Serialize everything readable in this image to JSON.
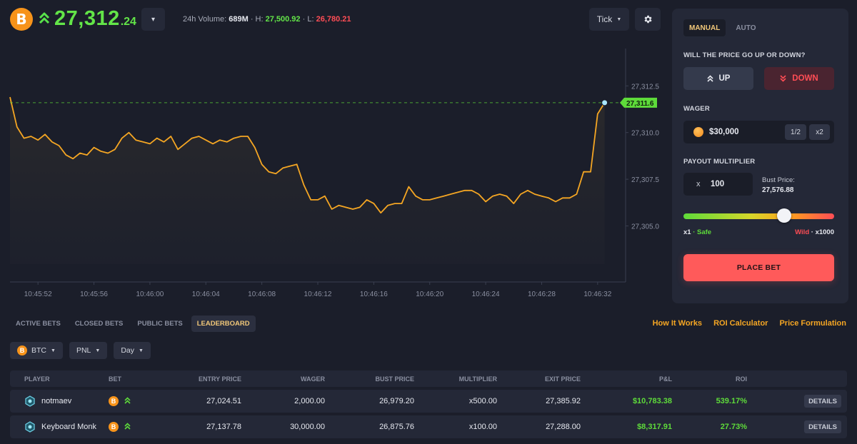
{
  "header": {
    "asset_logo": "B",
    "price_main": "27,312",
    "price_decimal": ".24",
    "direction_icon": "double-up-arrow",
    "asset_dropdown_icon": "▾",
    "stats": {
      "volume_label": "24h Volume:",
      "volume": "689M",
      "high_label": "· H:",
      "high": "27,500.92",
      "low_label": "· L:",
      "low": "26,780.21"
    },
    "tick_label": "Tick",
    "settings_icon": "gear-icon"
  },
  "chart_data": {
    "type": "line",
    "y_ticks": [
      "27,312.5",
      "27,310.0",
      "27,307.5",
      "27,305.0"
    ],
    "x_ticks": [
      "10:45:52",
      "10:45:56",
      "10:46:00",
      "10:46:04",
      "10:46:08",
      "10:46:12",
      "10:46:16",
      "10:46:20",
      "10:46:24",
      "10:46:28",
      "10:46:32"
    ],
    "current_label": "27,311.6",
    "current_value": 27311.6,
    "ylim": [
      27302.0,
      27314.5
    ],
    "xlim_seconds": [
      0,
      44
    ],
    "series": [
      {
        "color": "#f5a623",
        "points": [
          [
            0,
            27311.9
          ],
          [
            0.5,
            27310.3
          ],
          [
            1.0,
            27309.7
          ],
          [
            1.5,
            27309.8
          ],
          [
            2.0,
            27309.6
          ],
          [
            2.5,
            27309.9
          ],
          [
            3.0,
            27309.5
          ],
          [
            3.5,
            27309.3
          ],
          [
            4.0,
            27308.8
          ],
          [
            4.5,
            27308.6
          ],
          [
            5.0,
            27308.9
          ],
          [
            5.5,
            27308.8
          ],
          [
            6.0,
            27309.2
          ],
          [
            6.5,
            27309.0
          ],
          [
            7.0,
            27308.9
          ],
          [
            7.5,
            27309.1
          ],
          [
            8.0,
            27309.7
          ],
          [
            8.5,
            27310.0
          ],
          [
            9.0,
            27309.6
          ],
          [
            9.5,
            27309.5
          ],
          [
            10.0,
            27309.4
          ],
          [
            10.5,
            27309.7
          ],
          [
            11.0,
            27309.5
          ],
          [
            11.5,
            27309.8
          ],
          [
            12.0,
            27309.1
          ],
          [
            12.5,
            27309.4
          ],
          [
            13.0,
            27309.7
          ],
          [
            13.5,
            27309.8
          ],
          [
            14.0,
            27309.6
          ],
          [
            14.5,
            27309.4
          ],
          [
            15.0,
            27309.6
          ],
          [
            15.5,
            27309.5
          ],
          [
            16.0,
            27309.7
          ],
          [
            16.5,
            27309.8
          ],
          [
            17.0,
            27309.8
          ],
          [
            17.5,
            27309.2
          ],
          [
            18.0,
            27308.3
          ],
          [
            18.5,
            27307.9
          ],
          [
            19.0,
            27307.8
          ],
          [
            19.5,
            27308.1
          ],
          [
            20.0,
            27308.2
          ],
          [
            20.5,
            27308.3
          ],
          [
            21.0,
            27307.2
          ],
          [
            21.5,
            27306.4
          ],
          [
            22.0,
            27306.4
          ],
          [
            22.5,
            27306.6
          ],
          [
            23.0,
            27305.9
          ],
          [
            23.5,
            27306.1
          ],
          [
            24.0,
            27306.0
          ],
          [
            24.5,
            27305.9
          ],
          [
            25.0,
            27306.0
          ],
          [
            25.5,
            27306.4
          ],
          [
            26.0,
            27306.2
          ],
          [
            26.5,
            27305.7
          ],
          [
            27.0,
            27306.1
          ],
          [
            27.5,
            27306.2
          ],
          [
            28.0,
            27306.2
          ],
          [
            28.5,
            27307.1
          ],
          [
            29.0,
            27306.6
          ],
          [
            29.5,
            27306.4
          ],
          [
            30.0,
            27306.4
          ],
          [
            30.5,
            27306.5
          ],
          [
            31.0,
            27306.6
          ],
          [
            31.5,
            27306.7
          ],
          [
            32.0,
            27306.8
          ],
          [
            32.5,
            27306.9
          ],
          [
            33.0,
            27306.9
          ],
          [
            33.5,
            27306.7
          ],
          [
            34.0,
            27306.3
          ],
          [
            34.5,
            27306.6
          ],
          [
            35.0,
            27306.7
          ],
          [
            35.5,
            27306.6
          ],
          [
            36.0,
            27306.2
          ],
          [
            36.5,
            27306.7
          ],
          [
            37.0,
            27306.9
          ],
          [
            37.5,
            27306.7
          ],
          [
            38.0,
            27306.6
          ],
          [
            38.5,
            27306.5
          ],
          [
            39.0,
            27306.3
          ],
          [
            39.5,
            27306.5
          ],
          [
            40.0,
            27306.5
          ],
          [
            40.5,
            27306.7
          ],
          [
            41.0,
            27307.9
          ],
          [
            41.5,
            27307.9
          ],
          [
            42.0,
            27311.0
          ],
          [
            42.5,
            27311.6
          ]
        ]
      }
    ]
  },
  "panel": {
    "tabs": [
      "MANUAL",
      "AUTO"
    ],
    "question": "WILL THE PRICE GO UP OR DOWN?",
    "up_label": "UP",
    "down_label": "DOWN",
    "wager_label": "WAGER",
    "wager_value": "$30,000",
    "half_label": "1/2",
    "double_label": "x2",
    "multiplier_label": "PAYOUT MULTIPLIER",
    "multiplier_prefix": "x",
    "multiplier_value": "100",
    "bust_price_label": "Bust Price:",
    "bust_price_value": "27,576.88",
    "slider_level": 0.67,
    "range_low": "x1",
    "range_low_tag": "· Safe",
    "range_high_tag": "Wild",
    "range_high": "· x1000",
    "place_bet": "PLACE BET"
  },
  "bets": {
    "tabs": [
      "ACTIVE BETS",
      "CLOSED BETS",
      "PUBLIC BETS",
      "LEADERBOARD"
    ],
    "active_tab": "LEADERBOARD",
    "links": [
      "How It Works",
      "ROI Calculator",
      "Price Formulation"
    ],
    "filters": [
      {
        "label": "BTC",
        "icon": "btc-coin"
      },
      {
        "label": "PNL"
      },
      {
        "label": "Day"
      }
    ],
    "columns": [
      "PLAYER",
      "BET",
      "ENTRY PRICE",
      "WAGER",
      "BUST PRICE",
      "MULTIPLIER",
      "EXIT PRICE",
      "P&L",
      "ROI"
    ],
    "rows": [
      {
        "player": "notmaev",
        "entry": "27,024.51",
        "wager": "2,000.00",
        "bust": "26,979.20",
        "mult": "x500.00",
        "exit": "27,385.92",
        "pnl": "$10,783.38",
        "roi": "539.17%",
        "details": "DETAILS"
      },
      {
        "player": "Keyboard Monk",
        "entry": "27,137.78",
        "wager": "30,000.00",
        "bust": "26,875.76",
        "mult": "x100.00",
        "exit": "27,288.00",
        "pnl": "$8,317.91",
        "roi": "27.73%",
        "details": "DETAILS"
      }
    ]
  }
}
